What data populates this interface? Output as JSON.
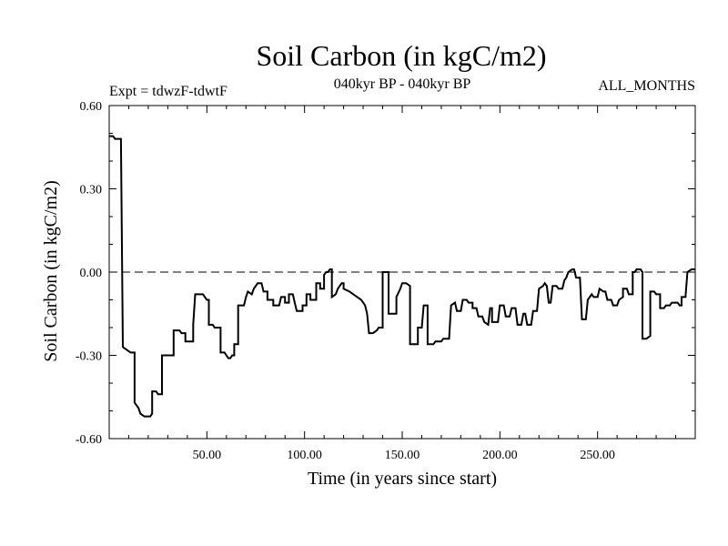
{
  "chart_data": {
    "type": "line",
    "title": "Soil Carbon (in kgC/m2)",
    "subtitle_left": "Expt = tdwzF-tdwtF",
    "subtitle_center": "040kyr BP - 040kyr BP",
    "subtitle_right": "ALL_MONTHS",
    "xlabel": "Time (in years since start)",
    "ylabel": "Soil Carbon (in kgC/m2)",
    "xlim": [
      0,
      300
    ],
    "ylim": [
      -0.6,
      0.6
    ],
    "x_ticks": [
      50,
      100,
      150,
      200,
      250
    ],
    "x_tick_labels": [
      "50.00",
      "100.00",
      "150.00",
      "200.00",
      "250.00"
    ],
    "y_ticks": [
      -0.6,
      -0.3,
      0.0,
      0.3,
      0.6
    ],
    "y_tick_labels": [
      "-0.60",
      "-0.30",
      "0.00",
      "0.30",
      "0.60"
    ],
    "zero_line": "dashed",
    "grid": false,
    "series": [
      {
        "color": "#000000",
        "points": [
          [
            0,
            0.49
          ],
          [
            2,
            0.49
          ],
          [
            3,
            0.48
          ],
          [
            6,
            0.48
          ],
          [
            7,
            -0.27
          ],
          [
            9,
            -0.28
          ],
          [
            11,
            -0.29
          ],
          [
            13,
            -0.29
          ],
          [
            13,
            -0.47
          ],
          [
            15,
            -0.49
          ],
          [
            16,
            -0.51
          ],
          [
            18,
            -0.52
          ],
          [
            21,
            -0.52
          ],
          [
            22,
            -0.51
          ],
          [
            22,
            -0.43
          ],
          [
            24,
            -0.43
          ],
          [
            25,
            -0.44
          ],
          [
            27,
            -0.44
          ],
          [
            27,
            -0.3
          ],
          [
            33,
            -0.3
          ],
          [
            33,
            -0.21
          ],
          [
            36,
            -0.21
          ],
          [
            37,
            -0.22
          ],
          [
            39,
            -0.22
          ],
          [
            39,
            -0.25
          ],
          [
            43,
            -0.25
          ],
          [
            43,
            -0.19
          ],
          [
            44,
            -0.08
          ],
          [
            48,
            -0.08
          ],
          [
            50,
            -0.1
          ],
          [
            51,
            -0.1
          ],
          [
            51,
            -0.19
          ],
          [
            53,
            -0.19
          ],
          [
            54,
            -0.2
          ],
          [
            57,
            -0.2
          ],
          [
            57,
            -0.29
          ],
          [
            59,
            -0.29
          ],
          [
            60,
            -0.3
          ],
          [
            61,
            -0.31
          ],
          [
            62,
            -0.31
          ],
          [
            63,
            -0.3
          ],
          [
            64,
            -0.3
          ],
          [
            64,
            -0.26
          ],
          [
            66,
            -0.26
          ],
          [
            66,
            -0.12
          ],
          [
            69,
            -0.12
          ],
          [
            70,
            -0.09
          ],
          [
            71,
            -0.07
          ],
          [
            73,
            -0.08
          ],
          [
            74,
            -0.06
          ],
          [
            75,
            -0.05
          ],
          [
            76,
            -0.04
          ],
          [
            78,
            -0.04
          ],
          [
            79,
            -0.07
          ],
          [
            81,
            -0.07
          ],
          [
            81,
            -0.1
          ],
          [
            84,
            -0.1
          ],
          [
            84,
            -0.12
          ],
          [
            87,
            -0.12
          ],
          [
            88,
            -0.09
          ],
          [
            90,
            -0.09
          ],
          [
            90,
            -0.11
          ],
          [
            92,
            -0.11
          ],
          [
            92,
            -0.08
          ],
          [
            94,
            -0.08
          ],
          [
            95,
            -0.11
          ],
          [
            96,
            -0.14
          ],
          [
            99,
            -0.14
          ],
          [
            99,
            -0.12
          ],
          [
            101,
            -0.12
          ],
          [
            101,
            -0.08
          ],
          [
            103,
            -0.08
          ],
          [
            103,
            -0.1
          ],
          [
            106,
            -0.1
          ],
          [
            106,
            -0.04
          ],
          [
            108,
            -0.04
          ],
          [
            108,
            -0.06
          ],
          [
            110,
            -0.06
          ],
          [
            110,
            -0.01
          ],
          [
            111,
            0.0
          ],
          [
            112,
            0.0
          ],
          [
            113,
            0.01
          ],
          [
            114,
            0.01
          ],
          [
            114,
            -0.09
          ],
          [
            116,
            -0.08
          ],
          [
            117,
            -0.06
          ],
          [
            118,
            -0.05
          ],
          [
            119,
            -0.04
          ],
          [
            120,
            -0.04
          ],
          [
            120,
            -0.06
          ],
          [
            123,
            -0.07
          ],
          [
            125,
            -0.08
          ],
          [
            127,
            -0.09
          ],
          [
            129,
            -0.1
          ],
          [
            130,
            -0.11
          ],
          [
            131,
            -0.12
          ],
          [
            132,
            -0.15
          ],
          [
            133,
            -0.22
          ],
          [
            135,
            -0.22
          ],
          [
            137,
            -0.21
          ],
          [
            138,
            -0.2
          ],
          [
            140,
            -0.2
          ],
          [
            140,
            0.0
          ],
          [
            143,
            0.0
          ],
          [
            143,
            -0.15
          ],
          [
            147,
            -0.15
          ],
          [
            147,
            -0.09
          ],
          [
            149,
            -0.06
          ],
          [
            150,
            -0.04
          ],
          [
            152,
            -0.04
          ],
          [
            154,
            -0.05
          ],
          [
            154,
            -0.26
          ],
          [
            158,
            -0.26
          ],
          [
            158,
            -0.2
          ],
          [
            160,
            -0.2
          ],
          [
            161,
            -0.12
          ],
          [
            163,
            -0.12
          ],
          [
            163,
            -0.26
          ],
          [
            166,
            -0.26
          ],
          [
            167,
            -0.25
          ],
          [
            170,
            -0.25
          ],
          [
            171,
            -0.24
          ],
          [
            174,
            -0.24
          ],
          [
            175,
            -0.12
          ],
          [
            177,
            -0.11
          ],
          [
            178,
            -0.14
          ],
          [
            180,
            -0.14
          ],
          [
            181,
            -0.1
          ],
          [
            183,
            -0.1
          ],
          [
            184,
            -0.11
          ],
          [
            186,
            -0.11
          ],
          [
            186,
            -0.13
          ],
          [
            188,
            -0.13
          ],
          [
            189,
            -0.16
          ],
          [
            191,
            -0.16
          ],
          [
            192,
            -0.18
          ],
          [
            194,
            -0.19
          ],
          [
            195,
            -0.13
          ],
          [
            196,
            -0.13
          ],
          [
            196,
            -0.18
          ],
          [
            199,
            -0.18
          ],
          [
            200,
            -0.12
          ],
          [
            202,
            -0.12
          ],
          [
            203,
            -0.16
          ],
          [
            205,
            -0.16
          ],
          [
            206,
            -0.13
          ],
          [
            208,
            -0.13
          ],
          [
            209,
            -0.19
          ],
          [
            211,
            -0.19
          ],
          [
            212,
            -0.15
          ],
          [
            213,
            -0.15
          ],
          [
            214,
            -0.19
          ],
          [
            216,
            -0.19
          ],
          [
            217,
            -0.14
          ],
          [
            219,
            -0.14
          ],
          [
            220,
            -0.06
          ],
          [
            222,
            -0.05
          ],
          [
            223,
            -0.04
          ],
          [
            224,
            -0.05
          ],
          [
            225,
            -0.11
          ],
          [
            226,
            -0.11
          ],
          [
            227,
            -0.05
          ],
          [
            229,
            -0.05
          ],
          [
            230,
            -0.06
          ],
          [
            232,
            -0.06
          ],
          [
            233,
            -0.03
          ],
          [
            234,
            -0.02
          ],
          [
            235,
            0.0
          ],
          [
            237,
            0.01
          ],
          [
            238,
            0.01
          ],
          [
            239,
            -0.02
          ],
          [
            241,
            -0.02
          ],
          [
            242,
            -0.17
          ],
          [
            244,
            -0.17
          ],
          [
            245,
            -0.1
          ],
          [
            247,
            -0.08
          ],
          [
            248,
            -0.09
          ],
          [
            250,
            -0.09
          ],
          [
            251,
            -0.06
          ],
          [
            253,
            -0.07
          ],
          [
            254,
            -0.07
          ],
          [
            255,
            -0.1
          ],
          [
            257,
            -0.1
          ],
          [
            258,
            -0.12
          ],
          [
            260,
            -0.12
          ],
          [
            261,
            -0.1
          ],
          [
            263,
            -0.09
          ],
          [
            263,
            -0.06
          ],
          [
            265,
            -0.06
          ],
          [
            266,
            -0.08
          ],
          [
            268,
            -0.08
          ],
          [
            268,
            0.0
          ],
          [
            269,
            0.0
          ],
          [
            270,
            0.01
          ],
          [
            272,
            0.01
          ],
          [
            273,
            0.0
          ],
          [
            273,
            -0.24
          ],
          [
            275,
            -0.24
          ],
          [
            277,
            -0.23
          ],
          [
            277,
            -0.07
          ],
          [
            279,
            -0.07
          ],
          [
            280,
            -0.08
          ],
          [
            282,
            -0.08
          ],
          [
            282,
            -0.13
          ],
          [
            284,
            -0.13
          ],
          [
            285,
            -0.12
          ],
          [
            287,
            -0.12
          ],
          [
            288,
            -0.11
          ],
          [
            291,
            -0.11
          ],
          [
            292,
            -0.12
          ],
          [
            293,
            -0.12
          ],
          [
            293,
            -0.09
          ],
          [
            295,
            -0.09
          ],
          [
            296,
            0.0
          ],
          [
            298,
            0.01
          ],
          [
            300,
            0.01
          ]
        ]
      }
    ]
  }
}
